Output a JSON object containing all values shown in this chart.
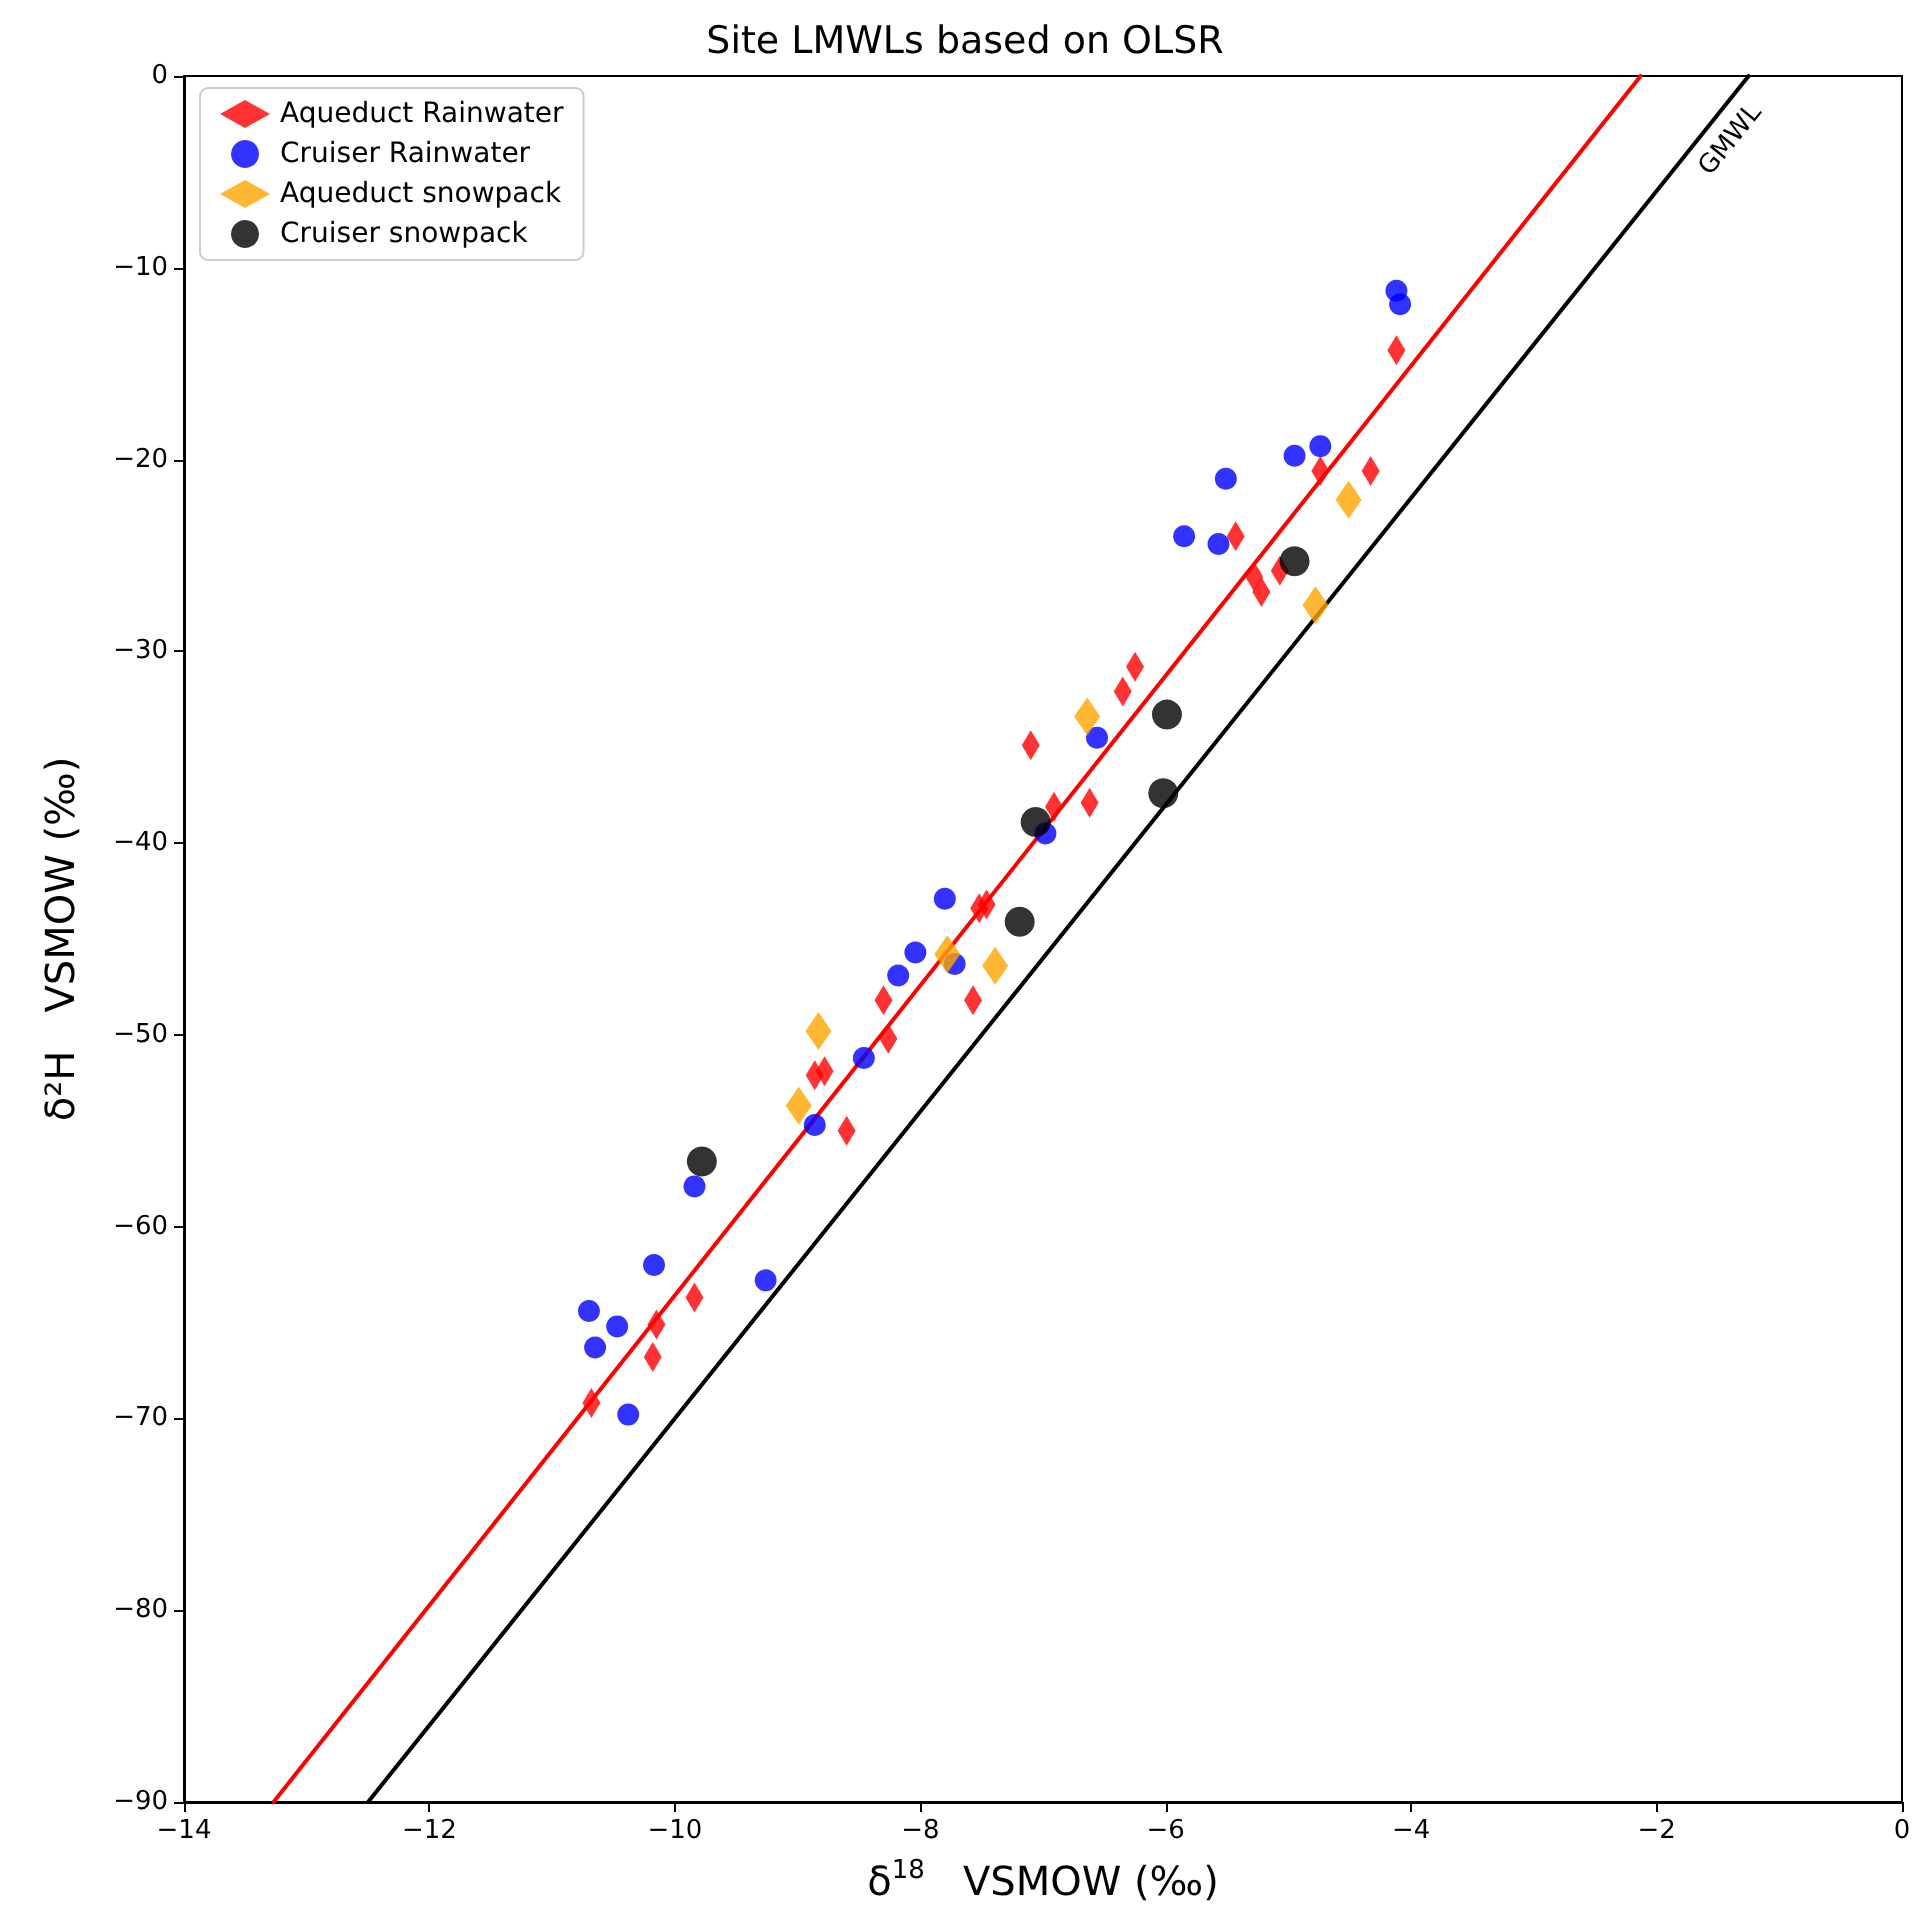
{
  "chart_data": {
    "type": "scatter",
    "title": "Site LMWLs based on OLSR",
    "xlabel": "δ$^{18}$   VSMOW (‰)",
    "ylabel": "δ²H   VSMOW (‰)",
    "xlim": [
      -14,
      0
    ],
    "ylim": [
      -90,
      0
    ],
    "xticks": [
      -14,
      -12,
      -10,
      -8,
      -6,
      -4,
      -2,
      0
    ],
    "yticks": [
      -90,
      -80,
      -70,
      -60,
      -50,
      -40,
      -30,
      -20,
      -10,
      0
    ],
    "grid": false,
    "legend": "top left",
    "annotations": [
      "GMWL"
    ],
    "series": [
      {
        "name": "Aqueduct Rainwater",
        "color": "#ff0000",
        "marker": "diamond",
        "x": [
          -10.68,
          -10.18,
          -10.15,
          -9.84,
          -8.86,
          -8.78,
          -8.6,
          -8.3,
          -8.26,
          -7.57,
          -7.52,
          -7.46,
          -7.1,
          -6.91,
          -6.62,
          -6.35,
          -6.25,
          -5.43,
          -5.28,
          -5.22,
          -5.07,
          -4.74,
          -4.33,
          -4.12
        ],
        "values": [
          -69.2,
          -66.8,
          -65.1,
          -63.7,
          -52.1,
          -51.9,
          -55.0,
          -48.2,
          -50.2,
          -48.2,
          -43.4,
          -43.2,
          -34.9,
          -38.1,
          -37.9,
          -32.1,
          -30.8,
          -24.0,
          -26.1,
          -26.9,
          -25.8,
          -20.6,
          -20.6,
          -14.3
        ]
      },
      {
        "name": "Cruiser Rainwater",
        "color": "#0000ff",
        "marker": "circle",
        "x": [
          -10.7,
          -10.65,
          -10.47,
          -10.38,
          -10.17,
          -9.84,
          -9.26,
          -8.86,
          -8.46,
          -8.18,
          -8.04,
          -7.8,
          -7.72,
          -6.98,
          -6.56,
          -5.85,
          -5.57,
          -5.51,
          -4.95,
          -4.74,
          -4.12,
          -4.09
        ],
        "values": [
          -64.4,
          -66.3,
          -65.2,
          -69.8,
          -62.0,
          -57.9,
          -62.8,
          -54.7,
          -51.2,
          -46.9,
          -45.7,
          -42.9,
          -46.3,
          -39.5,
          -34.5,
          -24.0,
          -24.4,
          -21.0,
          -19.8,
          -19.3,
          -11.2,
          -11.9
        ]
      },
      {
        "name": "Aqueduct snowpack",
        "color": "#ffa500",
        "marker": "diamond",
        "x": [
          -8.99,
          -8.83,
          -7.78,
          -7.39,
          -6.64,
          -4.78,
          -4.51
        ],
        "values": [
          -53.7,
          -49.8,
          -45.8,
          -46.4,
          -33.4,
          -27.6,
          -22.1
        ]
      },
      {
        "name": "Cruiser snowpack",
        "color": "#000000",
        "marker": "circle",
        "x": [
          -9.78,
          -7.19,
          -7.06,
          -6.02,
          -5.99,
          -4.95
        ],
        "values": [
          -56.6,
          -44.1,
          -38.9,
          -37.4,
          -33.3,
          -25.3
        ]
      },
      {
        "type": "line",
        "color": "#ff0000",
        "marker": "none",
        "line_style": "solid",
        "x": [
          -13.27,
          -2.13
        ],
        "values": [
          -90,
          0
        ]
      },
      {
        "type": "line",
        "color": "#000000",
        "marker": "none",
        "line_style": "solid",
        "x": [
          -12.5,
          -1.25
        ],
        "values": [
          -90,
          0
        ]
      }
    ]
  }
}
